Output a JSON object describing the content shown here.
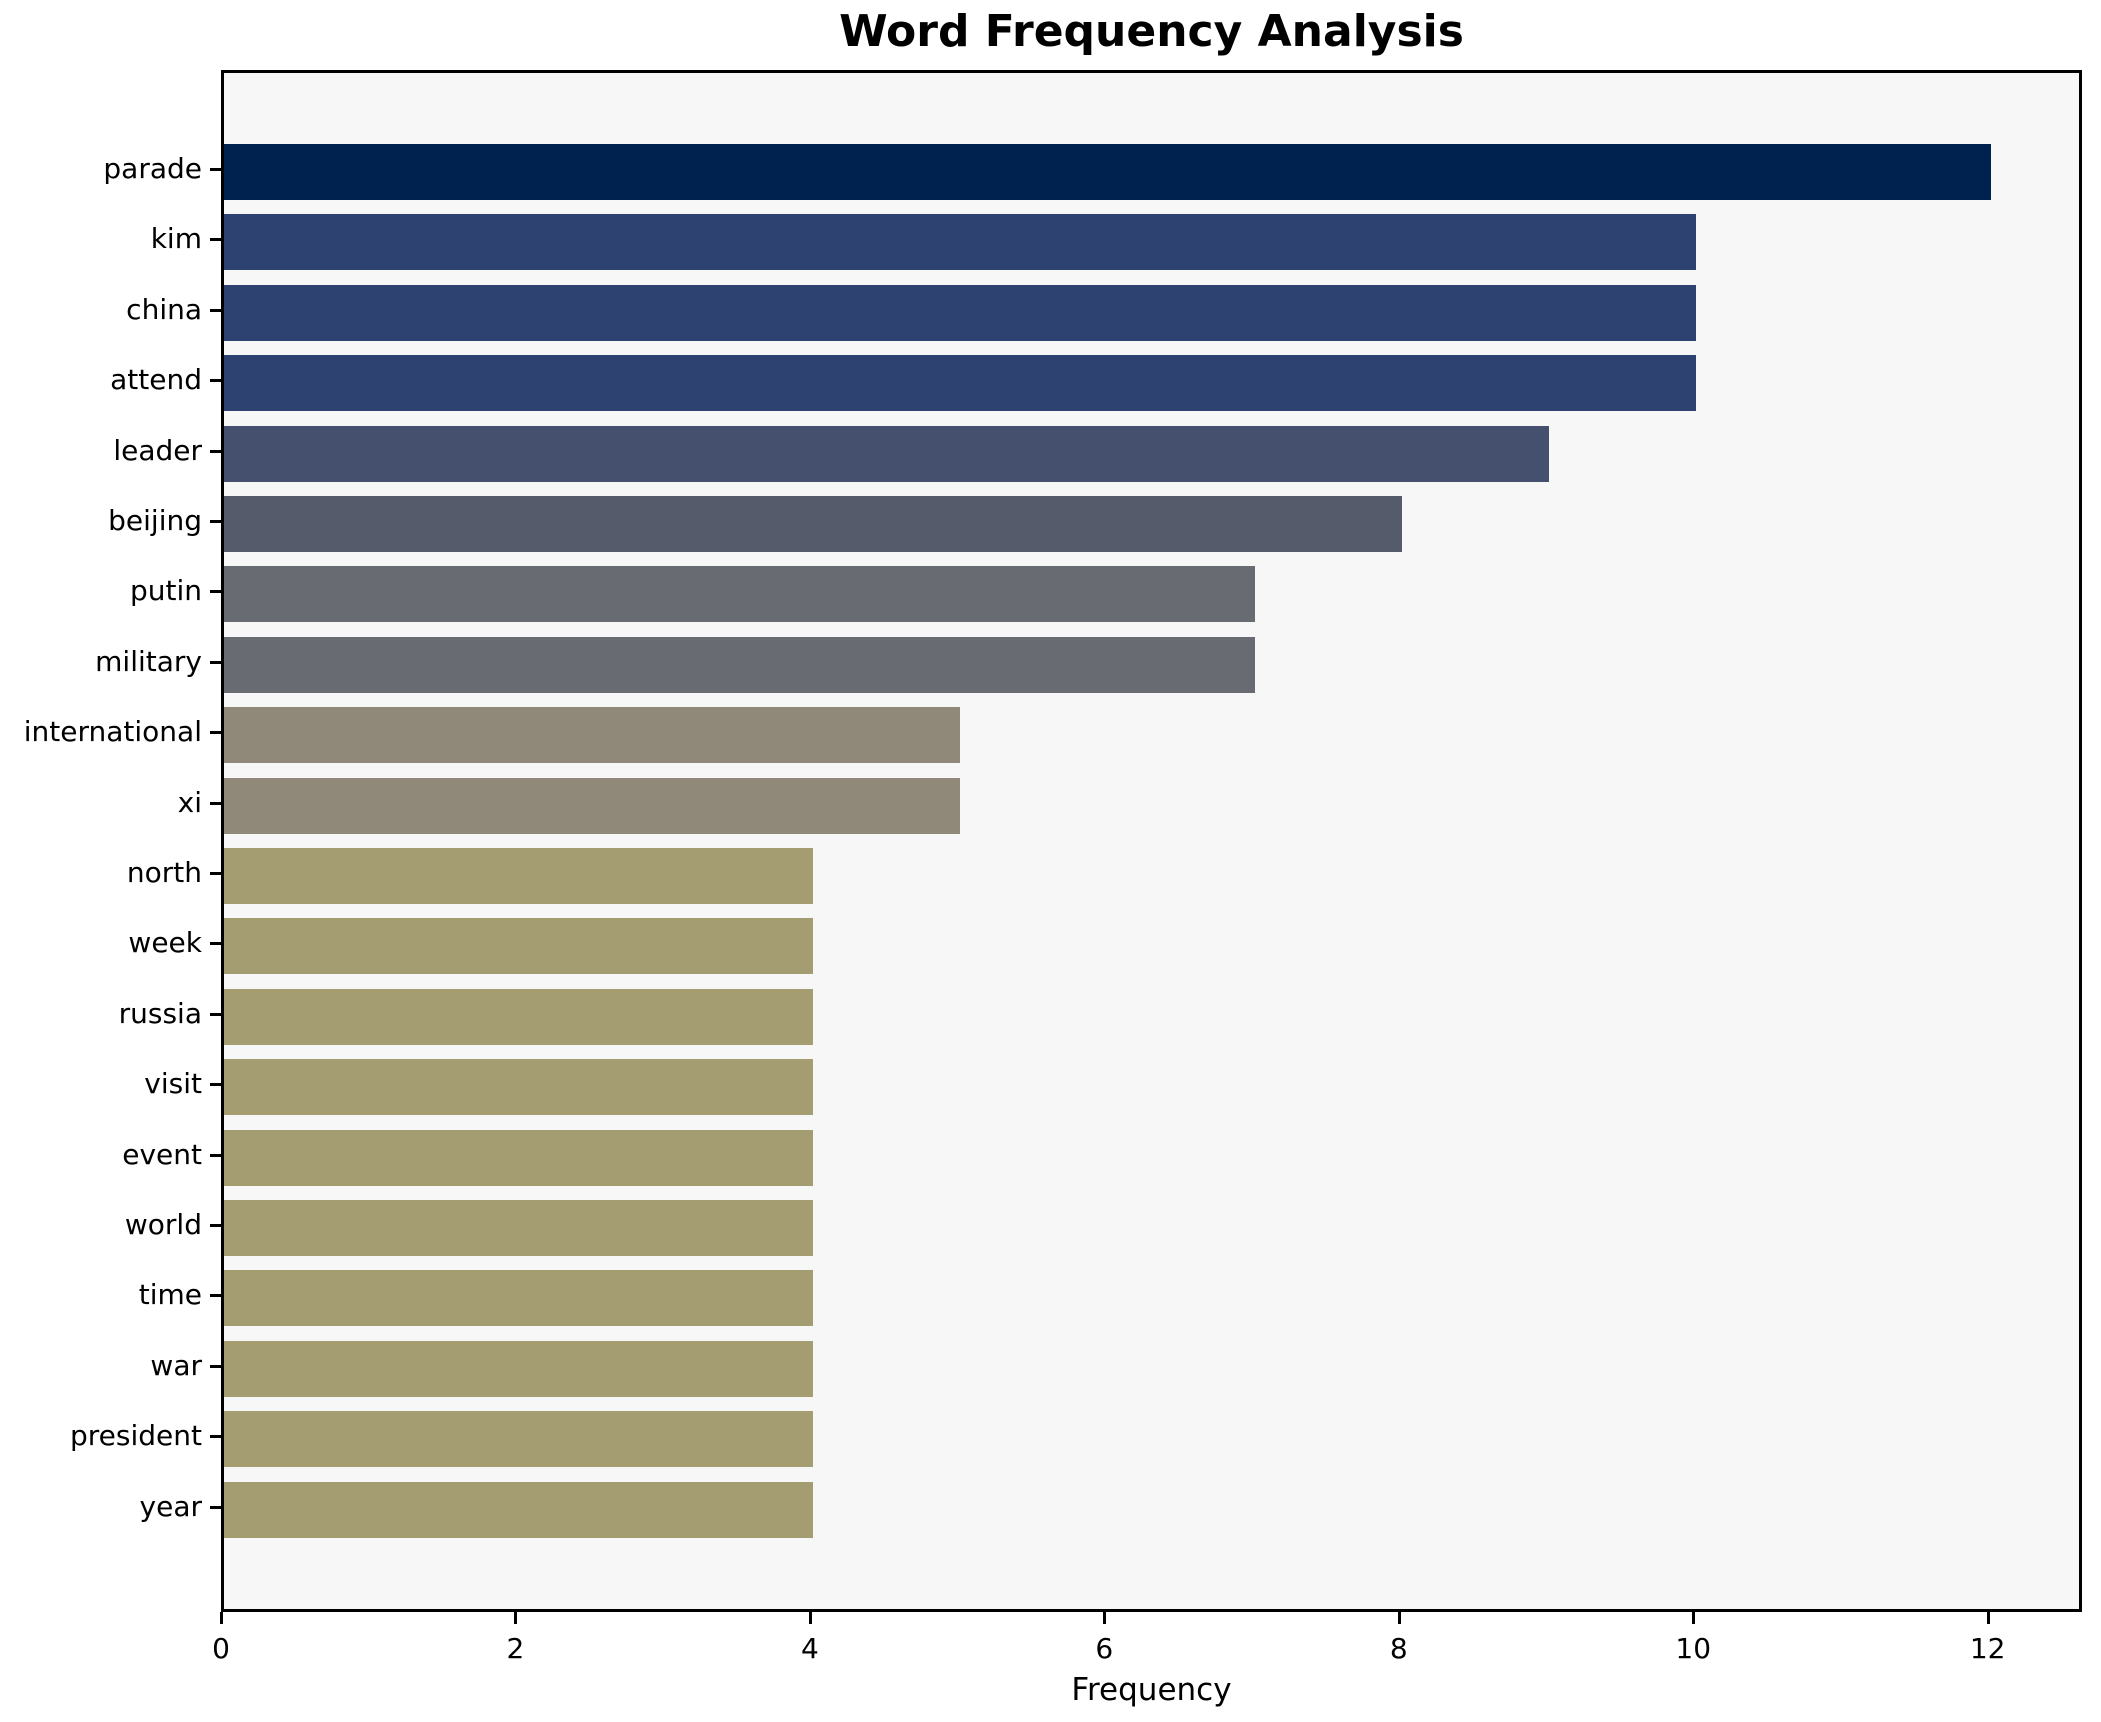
{
  "chart_data": {
    "type": "bar",
    "orientation": "horizontal",
    "title": "Word Frequency Analysis",
    "xlabel": "Frequency",
    "ylabel": "",
    "categories": [
      "parade",
      "kim",
      "china",
      "attend",
      "leader",
      "beijing",
      "putin",
      "military",
      "international",
      "xi",
      "north",
      "week",
      "russia",
      "visit",
      "event",
      "world",
      "time",
      "war",
      "president",
      "year"
    ],
    "values": [
      12,
      10,
      10,
      10,
      9,
      8,
      7,
      7,
      5,
      5,
      4,
      4,
      4,
      4,
      4,
      4,
      4,
      4,
      4,
      4
    ],
    "bar_colors": [
      "#00224e",
      "#2d4270",
      "#2d4270",
      "#2d4270",
      "#454f6e",
      "#565b6b",
      "#696b72",
      "#696b72",
      "#90897a",
      "#90897a",
      "#a49d71",
      "#a49d71",
      "#a49d71",
      "#a49d71",
      "#a49d71",
      "#a49d71",
      "#a49d71",
      "#a49d71",
      "#a49d71",
      "#a49d71"
    ],
    "xlim": [
      0,
      12.6
    ],
    "xticks": [
      0,
      2,
      4,
      6,
      8,
      10,
      12
    ],
    "grid": false,
    "legend": false,
    "plot_background": "#f7f7f8",
    "figure_background": "#ffffff",
    "spine_color": "#000000"
  }
}
